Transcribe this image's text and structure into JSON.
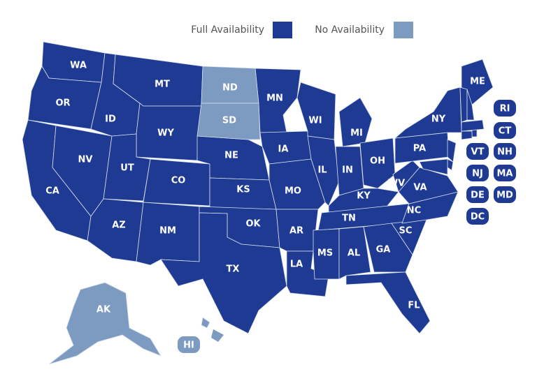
{
  "legend": [
    {
      "label": "Full Availability",
      "color": "#1f3a93",
      "states": [
        "WA",
        "OR",
        "CA",
        "NV",
        "ID",
        "MT",
        "WY",
        "UT",
        "CO",
        "AZ",
        "NM",
        "NE",
        "KS",
        "OK",
        "TX",
        "MN",
        "IA",
        "MO",
        "AR",
        "LA",
        "WI",
        "IL",
        "MI",
        "IN",
        "OH",
        "KY",
        "TN",
        "MS",
        "AL",
        "GA",
        "FL",
        "SC",
        "NC",
        "VA",
        "WV",
        "PA",
        "NY",
        "ME",
        "RI",
        "CT",
        "VT",
        "NH",
        "NJ",
        "MA",
        "DE",
        "MD",
        "DC"
      ]
    },
    {
      "label": "No Availability",
      "color": "#7d9bc1",
      "states": [
        "ND",
        "SD",
        "AK",
        "HI"
      ]
    }
  ]
}
